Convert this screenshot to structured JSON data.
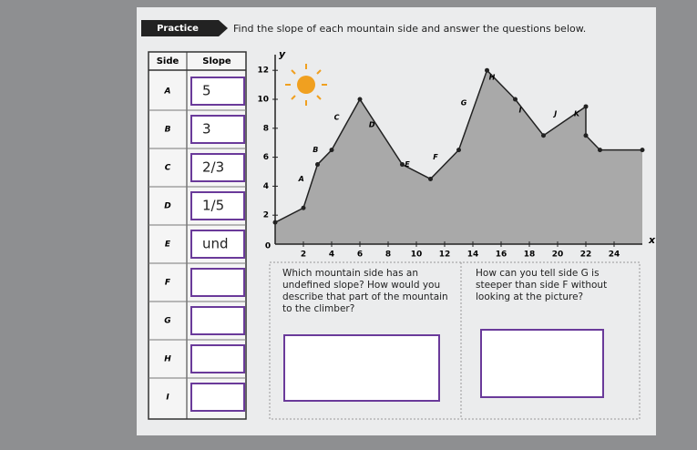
{
  "header": {
    "badge": "Practice",
    "instruction": "Find the slope of each mountain side and answer the questions below."
  },
  "table": {
    "headers": [
      "Side",
      "Slope"
    ],
    "rows": [
      {
        "side": "A",
        "slope": "5"
      },
      {
        "side": "B",
        "slope": "3"
      },
      {
        "side": "C",
        "slope": "2/3"
      },
      {
        "side": "D",
        "slope": "1/5"
      },
      {
        "side": "E",
        "slope": "und"
      },
      {
        "side": "F"
      },
      {
        "side": "G"
      },
      {
        "side": "H"
      },
      {
        "side": "I"
      }
    ]
  },
  "graph": {
    "x_label": "x",
    "y_label": "y",
    "xticks": [
      2,
      4,
      6,
      8,
      10,
      12,
      14,
      16,
      18,
      20,
      22,
      24
    ],
    "yticks": [
      2,
      4,
      6,
      8,
      10,
      12
    ],
    "origin_label": "0",
    "x": [
      0,
      2,
      3,
      4,
      6,
      9,
      11,
      13,
      15,
      17,
      19,
      22,
      22,
      23,
      26
    ],
    "y": [
      1.5,
      2.5,
      5.5,
      6.5,
      10,
      5.5,
      4.5,
      6.5,
      12,
      10,
      7.5,
      9.5,
      7.5,
      6.5,
      6.5
    ],
    "points": [
      "A",
      "B",
      "C",
      "D",
      "E",
      "F",
      "G",
      "H",
      "I",
      "J",
      "K"
    ]
  },
  "questions": [
    "Which mountain side has an undefined slope? How would you describe that part of the mountain to the climber?",
    "How can you tell side G is steeper than side F without looking at the picture?"
  ]
}
